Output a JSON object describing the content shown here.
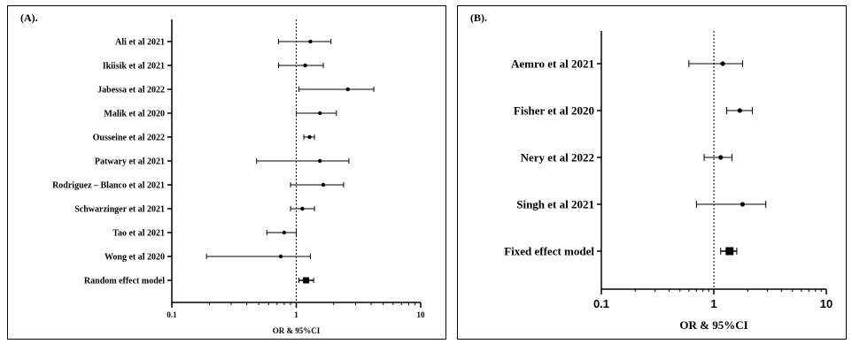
{
  "panels": [
    {
      "label": "(A).",
      "xlabel": "OR & 95%CI",
      "ticks": [
        "0.1",
        "1",
        "10"
      ]
    },
    {
      "label": "(B).",
      "xlabel": "OR & 95%CI",
      "ticks": [
        "0.1",
        "1",
        "10"
      ]
    }
  ],
  "chart_data": [
    {
      "type": "forest",
      "x_scale": "log",
      "xlim": [
        0.1,
        10
      ],
      "reference_line": 1,
      "xlabel": "OR & 95%CI",
      "studies": [
        {
          "name": "Ali et al 2021",
          "or": 1.3,
          "lower": 0.72,
          "upper": 1.9
        },
        {
          "name": "Ikiisik et al 2021",
          "or": 1.18,
          "lower": 0.72,
          "upper": 1.65
        },
        {
          "name": "Jabessa et al 2022",
          "or": 2.6,
          "lower": 1.05,
          "upper": 4.2
        },
        {
          "name": "Malik et al 2020",
          "or": 1.55,
          "lower": 1.0,
          "upper": 2.1
        },
        {
          "name": "Ousseine et al 2022",
          "or": 1.28,
          "lower": 1.15,
          "upper": 1.4
        },
        {
          "name": "Patwary et al 2021",
          "or": 1.55,
          "lower": 0.48,
          "upper": 2.65
        },
        {
          "name": "Rodriguez – Blanco et al 2021",
          "or": 1.65,
          "lower": 0.9,
          "upper": 2.4
        },
        {
          "name": "Schwarzinger et al 2021",
          "or": 1.12,
          "lower": 0.9,
          "upper": 1.4
        },
        {
          "name": "Tao et al 2021",
          "or": 0.8,
          "lower": 0.58,
          "upper": 1.0
        },
        {
          "name": "Wong et al 2020",
          "or": 0.75,
          "lower": 0.19,
          "upper": 1.3
        },
        {
          "name": "Random effect model",
          "or": 1.2,
          "lower": 1.05,
          "upper": 1.38,
          "summary": true
        }
      ]
    },
    {
      "type": "forest",
      "x_scale": "log",
      "xlim": [
        0.1,
        10
      ],
      "reference_line": 1,
      "xlabel": "OR & 95%CI",
      "studies": [
        {
          "name": "Aemro et al 2021",
          "or": 1.2,
          "lower": 0.6,
          "upper": 1.8
        },
        {
          "name": "Fisher et al 2020",
          "or": 1.7,
          "lower": 1.3,
          "upper": 2.2
        },
        {
          "name": "Nery et al 2022",
          "or": 1.15,
          "lower": 0.82,
          "upper": 1.45
        },
        {
          "name": "Singh et al 2021",
          "or": 1.8,
          "lower": 0.7,
          "upper": 2.9
        },
        {
          "name": "Fixed effect model",
          "or": 1.38,
          "lower": 1.15,
          "upper": 1.6,
          "summary": true
        }
      ]
    }
  ]
}
